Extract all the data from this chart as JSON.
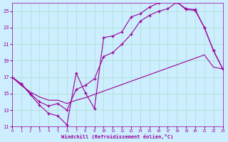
{
  "xlabel": "Windchill (Refroidissement éolien,°C)",
  "bg_color": "#cceeff",
  "grid_color": "#aaddcc",
  "line_color": "#990099",
  "xmin": 0,
  "xmax": 23,
  "ymin": 11,
  "ymax": 26,
  "yticks": [
    11,
    13,
    15,
    17,
    19,
    21,
    23,
    25
  ],
  "xticks": [
    0,
    1,
    2,
    3,
    4,
    5,
    6,
    7,
    8,
    9,
    10,
    11,
    12,
    13,
    14,
    15,
    16,
    17,
    18,
    19,
    20,
    21,
    22,
    23
  ],
  "line1_x": [
    0,
    1,
    2,
    3,
    4,
    5,
    6,
    7,
    8,
    9,
    10,
    11,
    12,
    13,
    14,
    15,
    16,
    17,
    18,
    19,
    20,
    21,
    22,
    23
  ],
  "line1_y": [
    17.0,
    16.2,
    14.9,
    13.6,
    12.6,
    12.3,
    11.2,
    17.5,
    15.1,
    13.2,
    21.8,
    22.0,
    22.5,
    24.3,
    24.7,
    25.5,
    26.0,
    26.2,
    26.1,
    25.2,
    25.1,
    23.0,
    20.2,
    18.0
  ],
  "line2_x": [
    0,
    1,
    2,
    3,
    4,
    5,
    6,
    7,
    8,
    9,
    10,
    11,
    12,
    13,
    14,
    15,
    16,
    17,
    18,
    19,
    20,
    21,
    22,
    23
  ],
  "line2_y": [
    17.0,
    16.2,
    15.0,
    14.0,
    13.5,
    13.8,
    13.0,
    15.5,
    16.0,
    16.8,
    19.5,
    20.0,
    21.0,
    22.2,
    23.8,
    24.5,
    25.0,
    25.3,
    26.1,
    25.3,
    25.2,
    23.0,
    20.2,
    18.0
  ],
  "line3_x": [
    0,
    1,
    2,
    3,
    4,
    5,
    6,
    7,
    8,
    9,
    10,
    11,
    12,
    13,
    14,
    15,
    16,
    17,
    18,
    19,
    20,
    21,
    22,
    23
  ],
  "line3_y": [
    17.0,
    16.0,
    15.2,
    14.6,
    14.2,
    14.2,
    13.8,
    14.2,
    14.5,
    14.9,
    15.3,
    15.7,
    16.1,
    16.5,
    16.9,
    17.3,
    17.7,
    18.1,
    18.5,
    18.9,
    19.3,
    19.7,
    18.2,
    18.0
  ]
}
